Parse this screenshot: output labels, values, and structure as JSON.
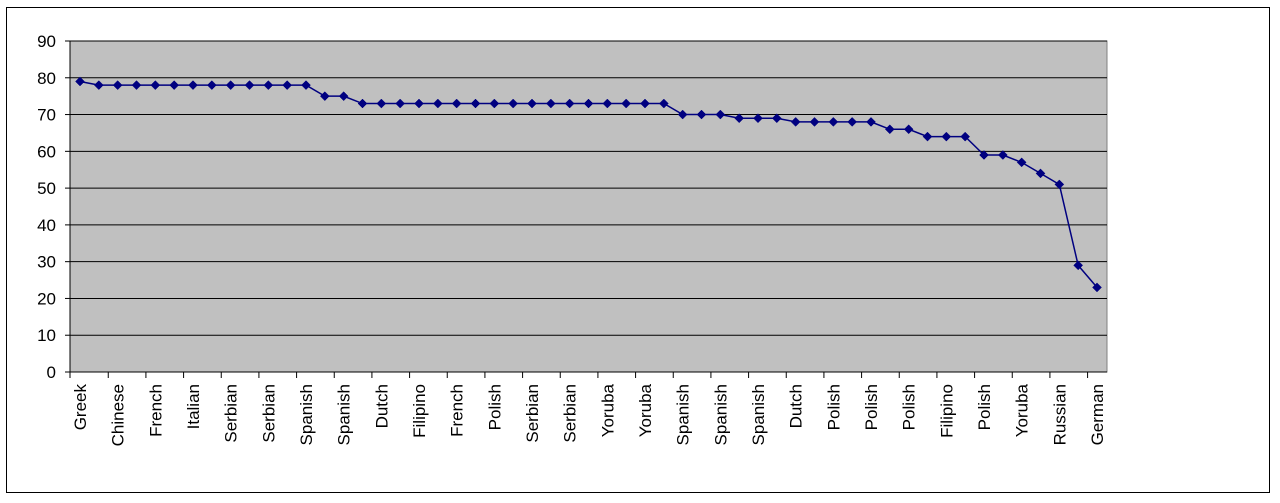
{
  "chart_data": {
    "type": "line",
    "title": "",
    "xlabel": "",
    "ylabel": "",
    "ylim": [
      0,
      90
    ],
    "yticks": [
      0,
      10,
      20,
      30,
      40,
      50,
      60,
      70,
      80,
      90
    ],
    "grid": true,
    "legend": "none",
    "colors": {
      "plot_bg": "#c0c0c0",
      "series": "#000080",
      "grid": "#000000"
    },
    "x_tick_labels": [
      "Greek",
      "Chinese",
      "French",
      "Italian",
      "Serbian",
      "Serbian",
      "Spanish",
      "Spanish",
      "Dutch",
      "Filipino",
      "French",
      "Polish",
      "Serbian",
      "Serbian",
      "Yoruba",
      "Yoruba",
      "Spanish",
      "Spanish",
      "Spanish",
      "Dutch",
      "Polish",
      "Polish",
      "Polish",
      "Filipino",
      "Polish",
      "Yoruba",
      "Russian",
      "German"
    ],
    "values": [
      79,
      78,
      78,
      78,
      78,
      78,
      78,
      78,
      78,
      78,
      78,
      78,
      78,
      75,
      75,
      73,
      73,
      73,
      73,
      73,
      73,
      73,
      73,
      73,
      73,
      73,
      73,
      73,
      73,
      73,
      73,
      73,
      70,
      70,
      70,
      69,
      69,
      69,
      68,
      68,
      68,
      68,
      68,
      66,
      66,
      64,
      64,
      64,
      59,
      59,
      57,
      54,
      51,
      29,
      23
    ]
  }
}
